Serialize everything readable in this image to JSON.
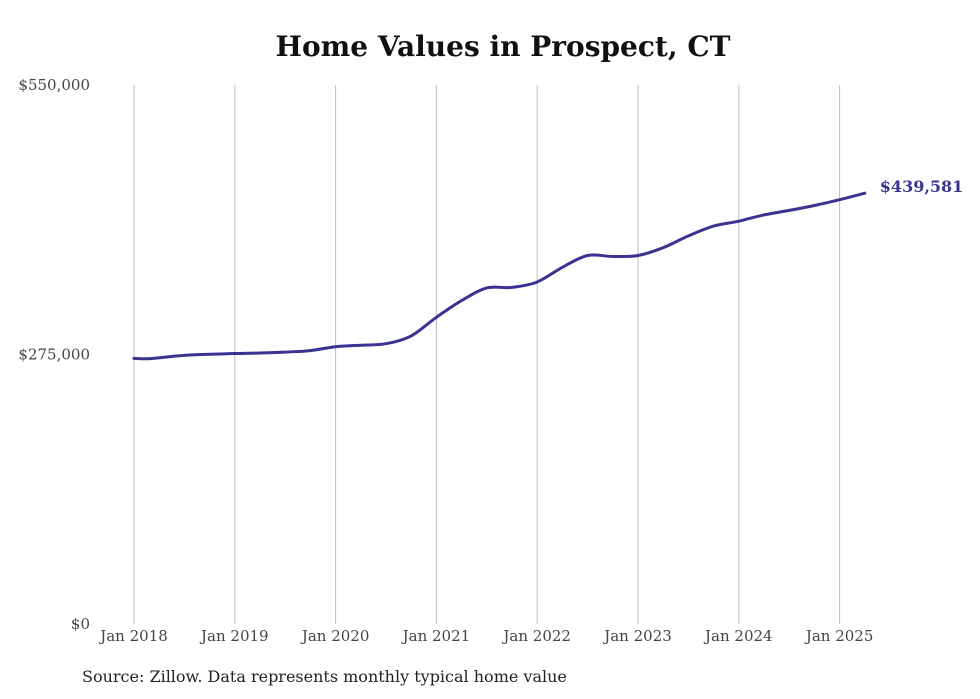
{
  "chart_data": {
    "type": "line",
    "title": "Home Values in Prospect, CT",
    "xlabel": "",
    "ylabel": "",
    "ylim": [
      0,
      550000
    ],
    "y_ticks": [
      "$550,000",
      "$275,000",
      "$0"
    ],
    "y_tick_values": [
      550000,
      275000,
      0
    ],
    "x_ticks": [
      "Jan 2018",
      "Jan 2019",
      "Jan 2020",
      "Jan 2021",
      "Jan 2022",
      "Jan 2023",
      "Jan 2024",
      "Jan 2025"
    ],
    "x_tick_years": [
      2018,
      2019,
      2020,
      2021,
      2022,
      2023,
      2024,
      2025
    ],
    "grid": "vertical",
    "line_color": "#3a3391",
    "end_label": "$439,581",
    "series": [
      {
        "values": [
          {
            "x": "2018-01",
            "y": 271000
          },
          {
            "x": "2018-03",
            "y": 270800
          },
          {
            "x": "2018-06",
            "y": 273500
          },
          {
            "x": "2018-09",
            "y": 275000
          },
          {
            "x": "2019-01",
            "y": 276000
          },
          {
            "x": "2019-04",
            "y": 276500
          },
          {
            "x": "2019-07",
            "y": 277500
          },
          {
            "x": "2019-10",
            "y": 279000
          },
          {
            "x": "2020-01",
            "y": 283000
          },
          {
            "x": "2020-04",
            "y": 284500
          },
          {
            "x": "2020-07",
            "y": 286000
          },
          {
            "x": "2020-10",
            "y": 294000
          },
          {
            "x": "2021-01",
            "y": 313000
          },
          {
            "x": "2021-04",
            "y": 330000
          },
          {
            "x": "2021-07",
            "y": 343000
          },
          {
            "x": "2021-10",
            "y": 343500
          },
          {
            "x": "2022-01",
            "y": 349000
          },
          {
            "x": "2022-04",
            "y": 364000
          },
          {
            "x": "2022-07",
            "y": 376000
          },
          {
            "x": "2022-10",
            "y": 375000
          },
          {
            "x": "2023-01",
            "y": 376000
          },
          {
            "x": "2023-04",
            "y": 384000
          },
          {
            "x": "2023-07",
            "y": 396000
          },
          {
            "x": "2023-10",
            "y": 406000
          },
          {
            "x": "2024-01",
            "y": 411000
          },
          {
            "x": "2024-04",
            "y": 417500
          },
          {
            "x": "2024-07",
            "y": 422000
          },
          {
            "x": "2024-10",
            "y": 427000
          },
          {
            "x": "2025-01",
            "y": 433000
          },
          {
            "x": "2025-04",
            "y": 439581
          }
        ]
      }
    ]
  },
  "source": "Source: Zillow. Data represents monthly typical home value"
}
